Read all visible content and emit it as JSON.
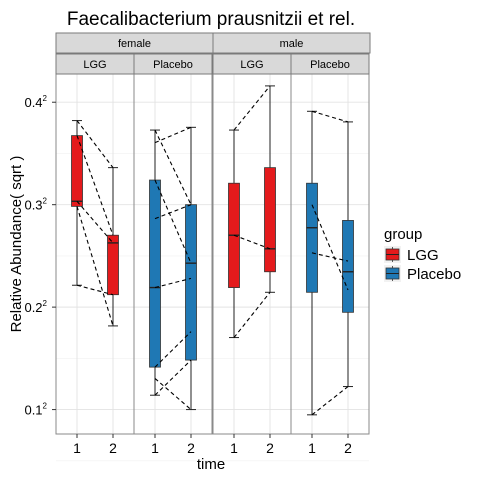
{
  "chart_data": {
    "type": "box",
    "title": "Faecalibacterium prausnitzii et rel.",
    "xlabel": "time",
    "ylabel": "Relative Abundance( sqrt )",
    "y_scale": "sqrt",
    "y_ticks": [
      {
        "value": 0.01,
        "base": "0.1",
        "exp": "2"
      },
      {
        "value": 0.04,
        "base": "0.2",
        "exp": "2"
      },
      {
        "value": 0.09,
        "base": "0.3",
        "exp": "2"
      },
      {
        "value": 0.16,
        "base": "0.4",
        "exp": "2"
      }
    ],
    "x_categories": [
      "1",
      "2"
    ],
    "facet_rows": [
      "female",
      "male"
    ],
    "facet_cols": [
      "LGG",
      "Placebo"
    ],
    "legend": {
      "title": "group",
      "position": "right",
      "entries": [
        {
          "label": "LGG",
          "color": "#e41a1c"
        },
        {
          "label": "Placebo",
          "color": "#1f78b4"
        }
      ]
    },
    "panels": [
      {
        "sex": "female",
        "group": "LGG",
        "color": "#e41a1c",
        "boxes": [
          {
            "time": "1",
            "min": 0.049,
            "q1": 0.089,
            "median": 0.092,
            "q3": 0.135,
            "max": 0.146
          },
          {
            "time": "2",
            "min": 0.033,
            "q1": 0.045,
            "median": 0.069,
            "q3": 0.073,
            "max": 0.113
          }
        ],
        "pairs": [
          [
            0.146,
            0.113
          ],
          [
            0.135,
            0.073
          ],
          [
            0.092,
            0.069
          ],
          [
            0.089,
            0.033
          ],
          [
            0.049,
            0.045
          ]
        ]
      },
      {
        "sex": "female",
        "group": "Placebo",
        "color": "#1f78b4",
        "boxes": [
          {
            "time": "1",
            "min": 0.013,
            "q1": 0.02,
            "median": 0.048,
            "q3": 0.105,
            "max": 0.139
          },
          {
            "time": "2",
            "min": 0.01,
            "q1": 0.022,
            "median": 0.059,
            "q3": 0.09,
            "max": 0.141
          }
        ],
        "pairs": [
          [
            0.139,
            0.09
          ],
          [
            0.13,
            0.141
          ],
          [
            0.105,
            0.059
          ],
          [
            0.082,
            0.09
          ],
          [
            0.048,
            0.052
          ],
          [
            0.02,
            0.031
          ],
          [
            0.013,
            0.022
          ],
          [
            0.017,
            0.01
          ]
        ]
      },
      {
        "sex": "male",
        "group": "LGG",
        "color": "#e41a1c",
        "boxes": [
          {
            "time": "1",
            "min": 0.029,
            "q1": 0.048,
            "median": 0.073,
            "q3": 0.103,
            "max": 0.139
          },
          {
            "time": "2",
            "min": 0.046,
            "q1": 0.055,
            "median": 0.066,
            "q3": 0.113,
            "max": 0.173
          }
        ],
        "pairs": [
          [
            0.139,
            0.173
          ],
          [
            0.073,
            0.066
          ],
          [
            0.029,
            0.046
          ]
        ]
      },
      {
        "sex": "male",
        "group": "Placebo",
        "color": "#1f78b4",
        "boxes": [
          {
            "time": "1",
            "min": 0.009,
            "q1": 0.046,
            "median": 0.077,
            "q3": 0.103,
            "max": 0.153
          },
          {
            "time": "2",
            "min": 0.015,
            "q1": 0.038,
            "median": 0.055,
            "q3": 0.081,
            "max": 0.145
          }
        ],
        "pairs": [
          [
            0.153,
            0.145
          ],
          [
            0.09,
            0.047
          ],
          [
            0.064,
            0.06
          ],
          [
            0.009,
            0.015
          ]
        ]
      }
    ],
    "grid": true
  }
}
